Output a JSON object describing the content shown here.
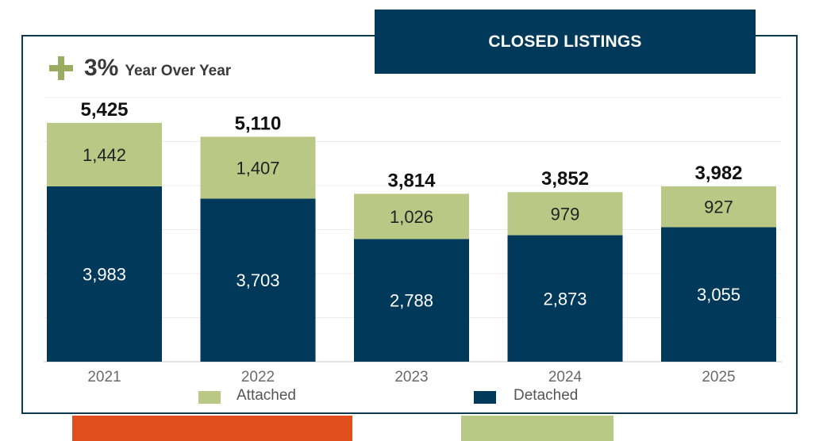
{
  "title": "CLOSED LISTINGS",
  "yoy": {
    "value": "3%",
    "label": "Year Over Year",
    "icon": "plus-icon",
    "icon_color": "#9aac5f"
  },
  "colors": {
    "attached": "#bac885",
    "detached": "#00395a",
    "banner": "#00395a",
    "footer_left": "#e04e1e",
    "footer_right": "#b8c985"
  },
  "chart_data": {
    "type": "bar",
    "stacked": true,
    "categories": [
      "2021",
      "2022",
      "2023",
      "2024",
      "2025"
    ],
    "series": [
      {
        "name": "Detached",
        "values": [
          3983,
          3703,
          2788,
          2873,
          3055
        ],
        "labels": [
          "3,983",
          "3,703",
          "2,788",
          "2,873",
          "3,055"
        ]
      },
      {
        "name": "Attached",
        "values": [
          1442,
          1407,
          1026,
          979,
          927
        ],
        "labels": [
          "1,442",
          "1,407",
          "1,026",
          "979",
          "927"
        ]
      }
    ],
    "totals": [
      5425,
      5110,
      3814,
      3852,
      3982
    ],
    "total_labels": [
      "5,425",
      "5,110",
      "3,814",
      "3,852",
      "3,982"
    ],
    "ylim": [
      0,
      6000
    ],
    "grid": true,
    "legend_placement": "bottom",
    "legend": [
      "Attached",
      "Detached"
    ]
  }
}
